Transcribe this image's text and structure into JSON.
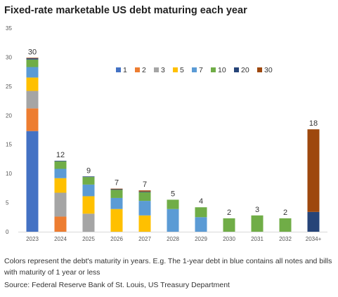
{
  "title": "Fixed-rate marketable US debt maturing each year",
  "note": "Colors represent the debt's maturity in years. E.g. The 1-year debt in blue contains all notes and bills with maturity of 1 year or less",
  "source": "Source: Federal Reserve Bank of St. Louis, US Treasury Department",
  "chart_data": {
    "type": "bar",
    "stacked": true,
    "title": "Fixed-rate marketable US debt maturing each year",
    "xlabel": "",
    "ylabel": "",
    "ylim": [
      0,
      35
    ],
    "yticks": [
      0,
      5,
      10,
      15,
      20,
      25,
      30,
      35
    ],
    "grid": false,
    "legend_position": "top-right",
    "categories": [
      "2023",
      "2024",
      "2025",
      "2026",
      "2027",
      "2028",
      "2029",
      "2030",
      "2031",
      "2032",
      "2034+"
    ],
    "series": [
      {
        "name": "1",
        "color": "#4472c4",
        "values": [
          17.3,
          0,
          0,
          0,
          0,
          0,
          0,
          0,
          0,
          0,
          0
        ]
      },
      {
        "name": "2",
        "color": "#ed7d31",
        "values": [
          3.9,
          2.6,
          0,
          0,
          0,
          0,
          0,
          0,
          0,
          0,
          0
        ]
      },
      {
        "name": "3",
        "color": "#a5a5a5",
        "values": [
          3.0,
          4.1,
          3.1,
          0,
          0,
          0,
          0,
          0,
          0,
          0,
          0
        ]
      },
      {
        "name": "5",
        "color": "#ffc000",
        "values": [
          2.3,
          2.5,
          3.0,
          3.9,
          2.8,
          0,
          0,
          0,
          0,
          0,
          0
        ]
      },
      {
        "name": "7",
        "color": "#5b9bd5",
        "values": [
          1.8,
          1.6,
          2.0,
          1.9,
          2.5,
          3.9,
          2.5,
          0,
          0,
          0,
          0
        ]
      },
      {
        "name": "10",
        "color": "#70ad47",
        "values": [
          1.3,
          1.3,
          1.3,
          1.4,
          1.5,
          1.6,
          1.7,
          2.3,
          2.8,
          2.3,
          0
        ]
      },
      {
        "name": "20",
        "color": "#264478",
        "values": [
          0.2,
          0.1,
          0.1,
          0.1,
          0.1,
          0,
          0,
          0,
          0,
          0,
          3.4
        ]
      },
      {
        "name": "30",
        "color": "#9e480e",
        "values": [
          0.1,
          0,
          0,
          0.1,
          0.2,
          0,
          0,
          0,
          0,
          0,
          14.2
        ]
      }
    ],
    "totals": [
      "30",
      "12",
      "9",
      "7",
      "7",
      "5",
      "4",
      "2",
      "3",
      "2",
      "18"
    ]
  }
}
